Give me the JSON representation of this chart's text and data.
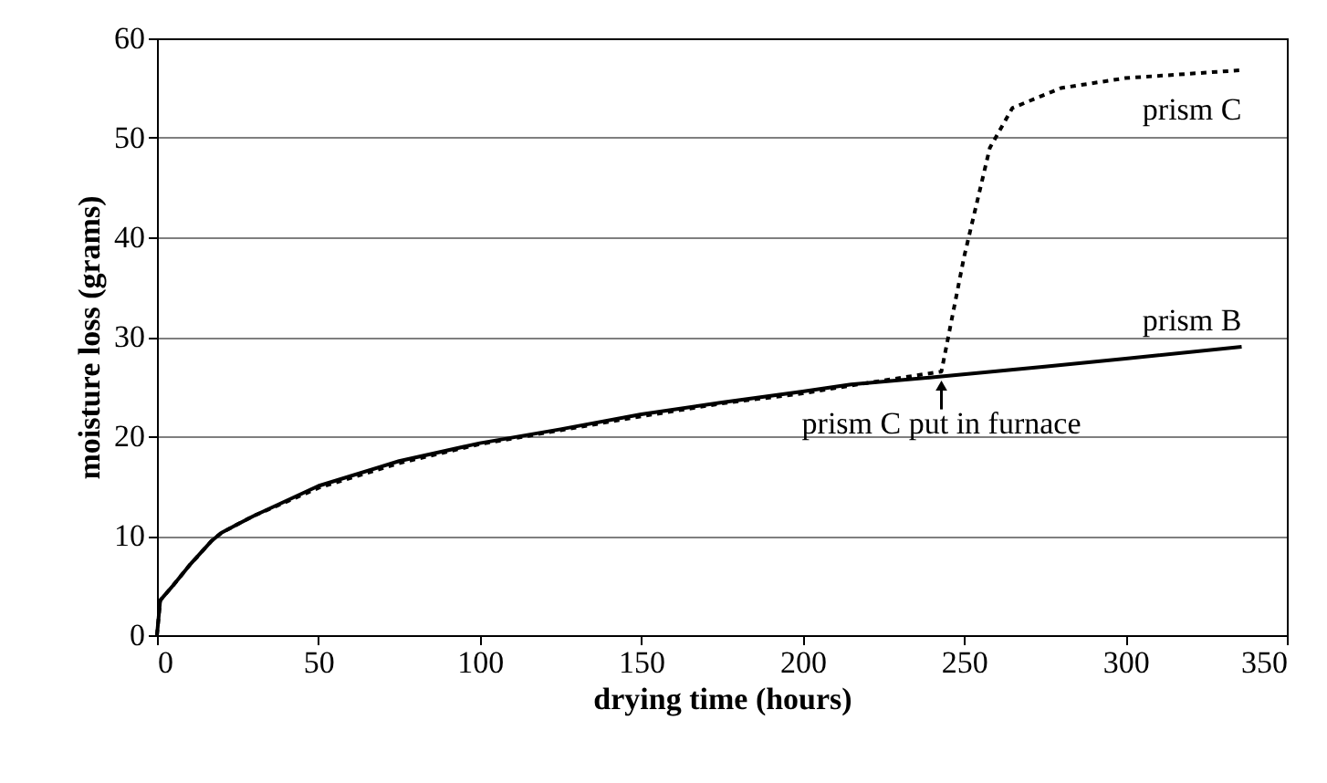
{
  "chart_data": {
    "type": "line",
    "xlabel": "drying time (hours)",
    "ylabel": "moisture loss (grams)",
    "xlim": [
      0,
      350
    ],
    "xticks": [
      0,
      50,
      100,
      150,
      200,
      250,
      300,
      350
    ],
    "ylim": [
      0,
      60
    ],
    "yticks": [
      0,
      10,
      20,
      30,
      40,
      50,
      60
    ],
    "grid": "y",
    "marker": "none",
    "series": [
      {
        "name": "prism B",
        "color": "#000000",
        "line_style": "solid",
        "x": [
          0,
          1,
          5,
          10,
          17,
          20,
          30,
          50,
          75,
          100,
          125,
          150,
          175,
          200,
          215,
          243,
          275,
          300,
          336
        ],
        "values": [
          0,
          3.5,
          5,
          7,
          9.5,
          10.3,
          12,
          15,
          17.5,
          19.3,
          20.7,
          22.2,
          23.4,
          24.5,
          25.2,
          26,
          27,
          27.8,
          29
        ]
      },
      {
        "name": "prism C",
        "color": "#000000",
        "line_style": "dashed",
        "x": [
          0,
          1,
          5,
          10,
          17,
          20,
          30,
          50,
          75,
          100,
          125,
          150,
          175,
          200,
          215,
          243,
          250,
          258,
          265,
          280,
          300,
          336
        ],
        "values": [
          0,
          3.5,
          5,
          7,
          9.5,
          10.3,
          12,
          14.8,
          17.3,
          19.2,
          20.6,
          22,
          23.3,
          24.3,
          25.1,
          26.5,
          38,
          49,
          53,
          55,
          56,
          56.8
        ]
      }
    ],
    "annotations": [
      {
        "text": "prism C put in furnace",
        "x": 243,
        "y": 26
      }
    ]
  }
}
